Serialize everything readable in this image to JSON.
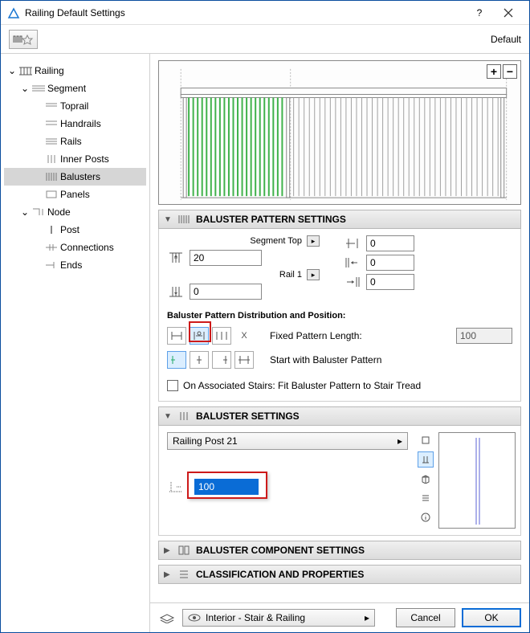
{
  "window": {
    "title": "Railing Default Settings"
  },
  "toolbar": {
    "mode_label": "Default"
  },
  "tree": {
    "root": "Railing",
    "segment": "Segment",
    "segment_children": [
      "Toprail",
      "Handrails",
      "Rails",
      "Inner Posts",
      "Balusters",
      "Panels"
    ],
    "node": "Node",
    "node_children": [
      "Post",
      "Connections",
      "Ends"
    ],
    "selected": "Balusters"
  },
  "sections": {
    "pattern": {
      "title": "BALUSTER PATTERN SETTINGS",
      "segment_top_label": "Segment Top",
      "segment_top_value": "20",
      "rail1_label": "Rail 1",
      "rail1_value": "0",
      "offset_a": "0",
      "offset_b": "0",
      "offset_c": "0",
      "dist_title": "Baluster Pattern Distribution and Position:",
      "fixed_len_label": "Fixed Pattern Length:",
      "fixed_len_value": "100",
      "start_with_label": "Start with Baluster Pattern",
      "stair_label": "On Associated Stairs: Fit Baluster Pattern to Stair Tread"
    },
    "baluster": {
      "title": "BALUSTER SETTINGS",
      "profile": "Railing Post 21",
      "spacing": "100"
    },
    "component": {
      "title": "BALUSTER COMPONENT SETTINGS"
    },
    "classification": {
      "title": "CLASSIFICATION AND PROPERTIES"
    }
  },
  "footer": {
    "layer": "Interior - Stair & Railing",
    "cancel": "Cancel",
    "ok": "OK"
  },
  "colors": {
    "green": "#3fb24a",
    "grey": "#a0a0a0",
    "sel_blue": "#0069d6",
    "red": "#cd1a1a"
  }
}
